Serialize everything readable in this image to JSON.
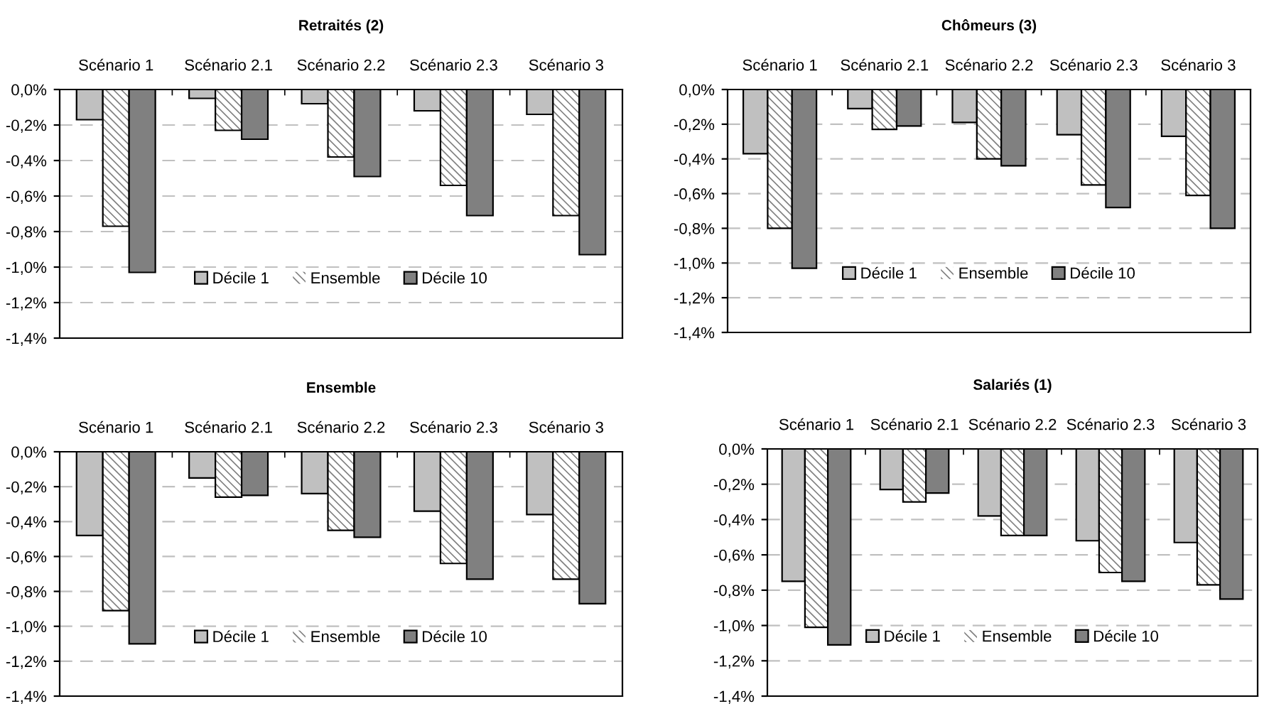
{
  "chart_data": [
    {
      "type": "bar",
      "title": "Retraités (2)",
      "categories": [
        "Scénario 1",
        "Scénario 2.1",
        "Scénario 2.2",
        "Scénario 2.3",
        "Scénario 3"
      ],
      "series": [
        {
          "name": "Décile 1",
          "color": "#c0c0c0",
          "values": [
            -0.17,
            -0.05,
            -0.08,
            -0.12,
            -0.14
          ]
        },
        {
          "name": "Ensemble",
          "color": "#808080",
          "values": [
            -0.77,
            -0.23,
            -0.38,
            -0.54,
            -0.71
          ]
        },
        {
          "name": "Décile 10",
          "color": "#808080",
          "values": [
            -1.03,
            -0.28,
            -0.49,
            -0.71,
            -0.93
          ]
        }
      ],
      "ylim": [
        -1.4,
        0
      ],
      "yticks": [
        {
          "value": 0,
          "label": "0,0%"
        },
        {
          "value": -0.2,
          "label": "-0,2%"
        },
        {
          "value": -0.4,
          "label": "-0,4%"
        },
        {
          "value": -0.6,
          "label": "-0,6%"
        },
        {
          "value": -0.8,
          "label": "-0,8%"
        },
        {
          "value": -1.0,
          "label": "-1,0%"
        },
        {
          "value": -1.2,
          "label": "-1,2%"
        },
        {
          "value": -1.4,
          "label": "-1,4%"
        }
      ],
      "grid": "y",
      "legend": "bottom"
    },
    {
      "type": "bar",
      "title": "Chômeurs (3)",
      "categories": [
        "Scénario 1",
        "Scénario 2.1",
        "Scénario 2.2",
        "Scénario 2.3",
        "Scénario 3"
      ],
      "series": [
        {
          "name": "Décile 1",
          "color": "#c0c0c0",
          "values": [
            -0.37,
            -0.11,
            -0.19,
            -0.26,
            -0.27
          ]
        },
        {
          "name": "Ensemble",
          "color": "#808080",
          "values": [
            -0.8,
            -0.23,
            -0.4,
            -0.55,
            -0.61
          ]
        },
        {
          "name": "Décile 10",
          "color": "#808080",
          "values": [
            -1.03,
            -0.21,
            -0.44,
            -0.68,
            -0.8
          ]
        }
      ],
      "ylim": [
        -1.4,
        0
      ],
      "yticks": [
        {
          "value": 0,
          "label": "0,0%"
        },
        {
          "value": -0.2,
          "label": "-0,2%"
        },
        {
          "value": -0.4,
          "label": "-0,4%"
        },
        {
          "value": -0.6,
          "label": "-0,6%"
        },
        {
          "value": -0.8,
          "label": "-0,8%"
        },
        {
          "value": -1.0,
          "label": "-1,0%"
        },
        {
          "value": -1.2,
          "label": "-1,2%"
        },
        {
          "value": -1.4,
          "label": "-1,4%"
        }
      ],
      "grid": "y",
      "legend": "bottom"
    },
    {
      "type": "bar",
      "title": "Ensemble",
      "categories": [
        "Scénario 1",
        "Scénario 2.1",
        "Scénario 2.2",
        "Scénario 2.3",
        "Scénario 3"
      ],
      "series": [
        {
          "name": "Décile 1",
          "color": "#c0c0c0",
          "values": [
            -0.48,
            -0.15,
            -0.24,
            -0.34,
            -0.36
          ]
        },
        {
          "name": "Ensemble",
          "color": "#808080",
          "values": [
            -0.91,
            -0.26,
            -0.45,
            -0.64,
            -0.73
          ]
        },
        {
          "name": "Décile 10",
          "color": "#808080",
          "values": [
            -1.1,
            -0.25,
            -0.49,
            -0.73,
            -0.87
          ]
        }
      ],
      "ylim": [
        -1.4,
        0
      ],
      "yticks": [
        {
          "value": 0,
          "label": "0,0%"
        },
        {
          "value": -0.2,
          "label": "-0,2%"
        },
        {
          "value": -0.4,
          "label": "-0,4%"
        },
        {
          "value": -0.6,
          "label": "-0,6%"
        },
        {
          "value": -0.8,
          "label": "-0,8%"
        },
        {
          "value": -1.0,
          "label": "-1,0%"
        },
        {
          "value": -1.2,
          "label": "-1,2%"
        },
        {
          "value": -1.4,
          "label": "-1,4%"
        }
      ],
      "grid": "y",
      "legend": "bottom"
    },
    {
      "type": "bar",
      "title": "Salariés (1)",
      "categories": [
        "Scénario 1",
        "Scénario 2.1",
        "Scénario 2.2",
        "Scénario 2.3",
        "Scénario 3"
      ],
      "series": [
        {
          "name": "Décile 1",
          "color": "#c0c0c0",
          "values": [
            -0.75,
            -0.23,
            -0.38,
            -0.52,
            -0.53
          ]
        },
        {
          "name": "Ensemble",
          "color": "#808080",
          "values": [
            -1.01,
            -0.3,
            -0.49,
            -0.7,
            -0.77
          ]
        },
        {
          "name": "Décile 10",
          "color": "#808080",
          "values": [
            -1.11,
            -0.25,
            -0.49,
            -0.75,
            -0.85
          ]
        }
      ],
      "ylim": [
        -1.4,
        0
      ],
      "yticks": [
        {
          "value": 0,
          "label": "0,0%"
        },
        {
          "value": -0.2,
          "label": "-0,2%"
        },
        {
          "value": -0.4,
          "label": "-0,4%"
        },
        {
          "value": -0.6,
          "label": "-0,6%"
        },
        {
          "value": -0.8,
          "label": "-0,8%"
        },
        {
          "value": -1.0,
          "label": "-1,0%"
        },
        {
          "value": -1.2,
          "label": "-1,2%"
        },
        {
          "value": -1.4,
          "label": "-1,4%"
        }
      ],
      "grid": "y",
      "legend": "bottom"
    }
  ]
}
